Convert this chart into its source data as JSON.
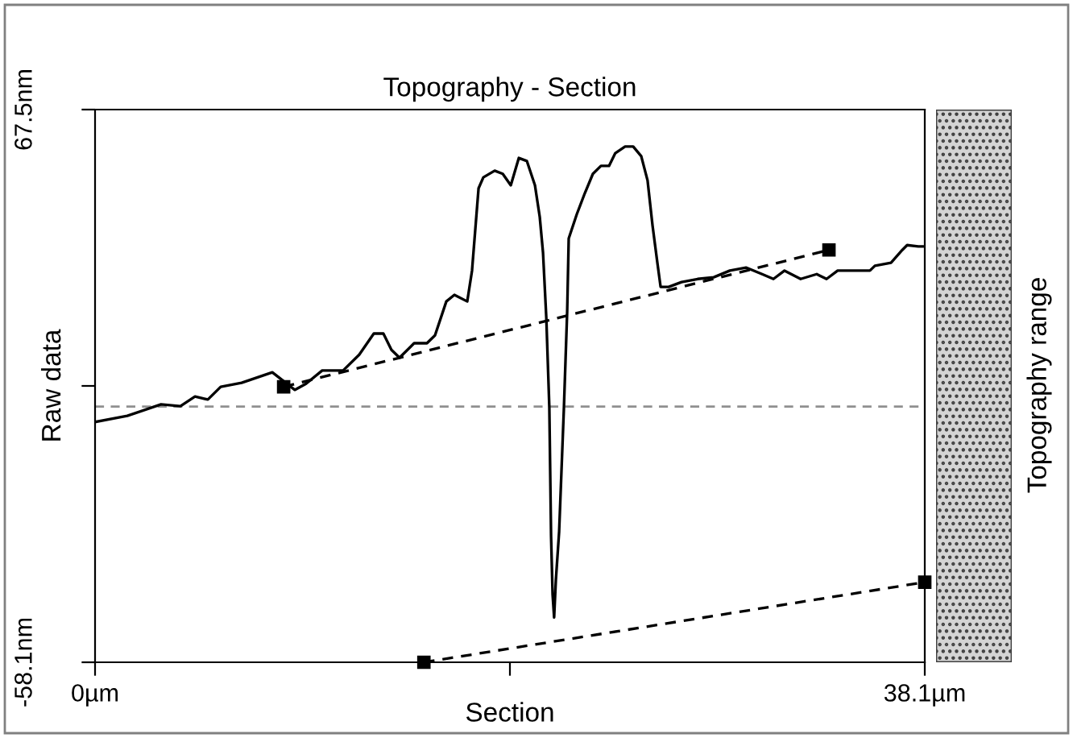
{
  "chart_data": {
    "type": "line",
    "title": "Topography - Section",
    "xlabel": "Section",
    "ylabel": "Raw data",
    "clabel": "Topography range",
    "xlim": [
      0,
      38.1
    ],
    "ylim": [
      -58.1,
      67.5
    ],
    "xticks": [
      {
        "value": 0,
        "label": "0µm"
      },
      {
        "value": 19.05,
        "label": null
      },
      {
        "value": 38.1,
        "label": "38.1µm"
      }
    ],
    "yticks": [
      {
        "value": -58.1,
        "label": "-58.1nm"
      },
      {
        "value": 4.7,
        "label": null
      },
      {
        "value": 67.5,
        "label": "67.5nm"
      }
    ],
    "grid": false,
    "legend": false,
    "ref_lines": [
      {
        "axis": "y",
        "value": 0,
        "label": null,
        "color": "#909090",
        "line_style": "dashed"
      }
    ],
    "series": [
      {
        "color": "#000000",
        "line_style": "solid",
        "marker": "none",
        "x": [
          0.0,
          1.48,
          3.03,
          3.92,
          4.59,
          5.18,
          5.77,
          6.73,
          8.14,
          9.17,
          9.69,
          10.43,
          11.39,
          12.13,
          12.8,
          13.24,
          13.61,
          13.98,
          14.65,
          15.24,
          15.61,
          16.13,
          16.5,
          17.09,
          17.31,
          17.61,
          17.83,
          18.35,
          18.72,
          19.09,
          19.46,
          19.83,
          20.2,
          20.42,
          20.57,
          20.72,
          20.86,
          20.94,
          21.01,
          21.08,
          21.16,
          21.31,
          21.53,
          21.68,
          21.75,
          22.12,
          22.49,
          22.86,
          23.23,
          23.6,
          23.89,
          24.34,
          24.71,
          25.08,
          25.37,
          25.6,
          25.82,
          25.97,
          26.34,
          26.93,
          27.67,
          28.41,
          29.15,
          29.89,
          30.63,
          31.15,
          31.66,
          32.4,
          33.14,
          33.59,
          34.1,
          35.58,
          35.81,
          36.55,
          37.07,
          37.29,
          37.8,
          38.0
        ],
        "values": [
          -3.5,
          -2.1,
          0.5,
          0.1,
          2.3,
          1.6,
          4.5,
          5.4,
          7.8,
          3.8,
          5.2,
          8.2,
          8.2,
          11.8,
          16.6,
          16.6,
          12.9,
          11.1,
          14.4,
          14.4,
          16.2,
          23.9,
          25.4,
          23.9,
          30.9,
          49.6,
          52.1,
          53.6,
          52.9,
          50.3,
          56.5,
          55.8,
          50.3,
          43.1,
          35.0,
          20.3,
          -0.2,
          -29.5,
          -42.7,
          -47.9,
          -39.4,
          -28.4,
          -0.2,
          21.7,
          38.2,
          43.7,
          48.5,
          52.9,
          54.7,
          54.7,
          57.6,
          59.1,
          59.1,
          56.9,
          51.4,
          41.1,
          32.7,
          27.2,
          27.2,
          28.3,
          29.0,
          29.4,
          30.9,
          31.6,
          30.1,
          29.0,
          30.9,
          29.0,
          30.1,
          29.0,
          30.9,
          30.9,
          32.0,
          32.7,
          35.6,
          36.7,
          36.4,
          36.4
        ]
      },
      {
        "color": "#000000",
        "line_style": "dashed",
        "marker": "square",
        "x": [
          8.66,
          33.7
        ],
        "values": [
          4.5,
          35.6
        ]
      },
      {
        "color": "#000000",
        "line_style": "dashed",
        "marker": "square",
        "x": [
          15.1,
          38.1
        ],
        "values": [
          -58.1,
          -39.9
        ]
      }
    ]
  }
}
